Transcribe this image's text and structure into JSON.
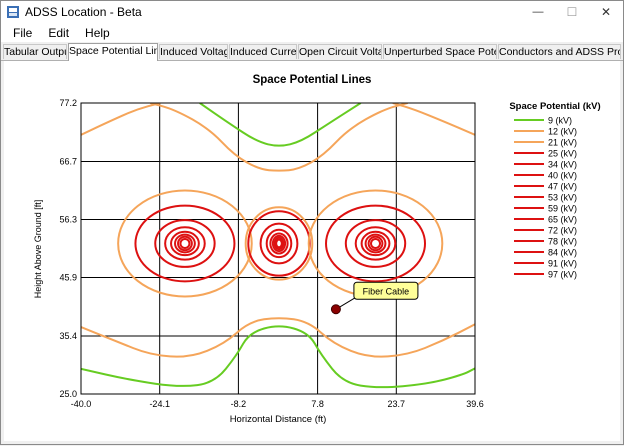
{
  "window": {
    "title": "ADSS Location - Beta",
    "min_glyph": "—",
    "max_glyph": "☐",
    "close_glyph": "✕"
  },
  "menu": [
    "File",
    "Edit",
    "Help"
  ],
  "tabs": [
    "Tabular Output",
    "Space Potential Lines",
    "Induced Voltage",
    "Induced Current",
    "Open Circuit Voltage",
    "Unperturbed Space Potential",
    "Conductors and ADSS Profile"
  ],
  "active_tab": 1,
  "chart_data": {
    "type": "contour",
    "title": "Space Potential Lines",
    "xlabel": "Horizontal Distance (ft)",
    "ylabel": "Height Above Ground [ft]",
    "xlim": [
      -40.0,
      39.6
    ],
    "ylim": [
      25.0,
      77.2
    ],
    "xticks": [
      "-40.0",
      "-24.1",
      "-8.2",
      "7.8",
      "23.7",
      "39.6"
    ],
    "yticks": [
      "25.0",
      "35.4",
      "45.9",
      "56.3",
      "66.7",
      "77.2"
    ],
    "grid": true,
    "legend": {
      "title": "Space Potential (kV)",
      "placement": "right",
      "entries": [
        {
          "label": "9 (kV)",
          "color": "#66cc22"
        },
        {
          "label": "12 (kV)",
          "color": "#f5a55a"
        },
        {
          "label": "21 (kV)",
          "color": "#f5a55a"
        },
        {
          "label": "25 (kV)",
          "color": "#dd1111"
        },
        {
          "label": "34 (kV)",
          "color": "#dd1111"
        },
        {
          "label": "40 (kV)",
          "color": "#dd1111"
        },
        {
          "label": "47 (kV)",
          "color": "#dd1111"
        },
        {
          "label": "53 (kV)",
          "color": "#dd1111"
        },
        {
          "label": "59 (kV)",
          "color": "#dd1111"
        },
        {
          "label": "65 (kV)",
          "color": "#dd1111"
        },
        {
          "label": "72 (kV)",
          "color": "#dd1111"
        },
        {
          "label": "78 (kV)",
          "color": "#dd1111"
        },
        {
          "label": "84 (kV)",
          "color": "#dd1111"
        },
        {
          "label": "91 (kV)",
          "color": "#dd1111"
        },
        {
          "label": "97 (kV)",
          "color": "#dd1111"
        }
      ]
    },
    "conductors": [
      {
        "x": -19.0,
        "y": 52.0
      },
      {
        "x": 0.0,
        "y": 52.0
      },
      {
        "x": 19.5,
        "y": 52.0
      }
    ],
    "annotation": {
      "label": "Fiber Cable",
      "x": 11.5,
      "y": 40.2
    },
    "colors": {
      "green": "#66cc22",
      "orange": "#f5a55a",
      "red": "#dd1111",
      "marker": "#8b0000",
      "callout": "#ffff99"
    }
  }
}
